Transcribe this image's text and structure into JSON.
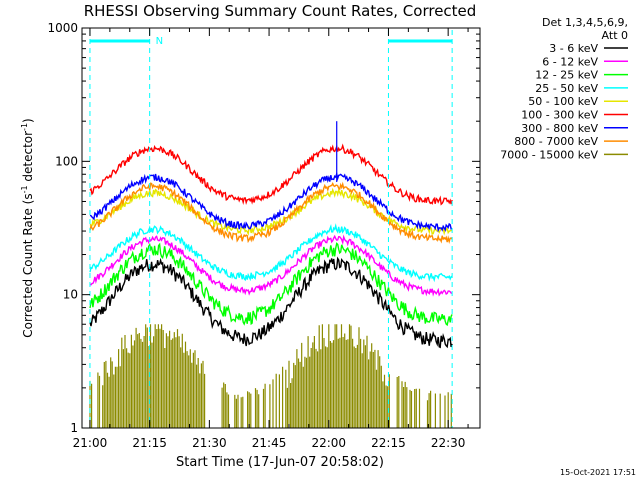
{
  "chart_data": {
    "type": "line",
    "title": "RHESSI Observing Summary Count Rates, Corrected",
    "xlabel": "Start Time (17-Jun-07 20:58:02)",
    "ylabel_main": "Corrected Count Rate (s",
    "ylabel_sup1": "-1",
    "ylabel_mid": " detector",
    "ylabel_sup2": "-1",
    "ylabel_end": ")",
    "yscale": "log",
    "ylim": [
      1,
      1000
    ],
    "xlim_minutes": [
      -2,
      98
    ],
    "x_ticks": [
      {
        "value": 0,
        "label": "21:00"
      },
      {
        "value": 15,
        "label": "21:15"
      },
      {
        "value": 30,
        "label": "21:30"
      },
      {
        "value": 45,
        "label": "21:45"
      },
      {
        "value": 60,
        "label": "22:00"
      },
      {
        "value": 75,
        "label": "22:15"
      },
      {
        "value": 90,
        "label": "22:30"
      }
    ],
    "y_ticks": [
      {
        "value": 1,
        "label": "1"
      },
      {
        "value": 10,
        "label": "10"
      },
      {
        "value": 100,
        "label": "100"
      },
      {
        "value": 1000,
        "label": "1000"
      }
    ],
    "legend": {
      "header1": "Det 1,3,4,5,6,9,",
      "header2": "Att 0",
      "position": "outside-right"
    },
    "series": [
      {
        "name": "3 - 6 keV",
        "color": "#000000",
        "base": 4.5,
        "peak": 17,
        "kind": "orbit"
      },
      {
        "name": "6 - 12 keV",
        "color": "#ff00ff",
        "base": 10.5,
        "peak": 26,
        "kind": "orbit"
      },
      {
        "name": "12 - 25 keV",
        "color": "#00ff00",
        "base": 6.5,
        "peak": 22,
        "kind": "orbit"
      },
      {
        "name": "25 - 50 keV",
        "color": "#00ffff",
        "base": 13.5,
        "peak": 31,
        "kind": "orbit"
      },
      {
        "name": "50 - 100 keV",
        "color": "#e6e600",
        "base": 30,
        "peak": 58,
        "kind": "orbit"
      },
      {
        "name": "100 - 300 keV",
        "color": "#ff0000",
        "base": 50,
        "peak": 125,
        "kind": "orbit"
      },
      {
        "name": "300 - 800 keV",
        "color": "#0000ff",
        "base": 32,
        "peak": 76,
        "kind": "orbit"
      },
      {
        "name": "800 - 7000 keV",
        "color": "#ff8c00",
        "base": 26,
        "peak": 65,
        "kind": "orbit"
      },
      {
        "name": "7000 - 15000 keV",
        "color": "#8b8b00",
        "base": 1.5,
        "peak": 5.5,
        "kind": "sparse"
      }
    ],
    "orbit_peaks_minutes": [
      16,
      62
    ],
    "orbit_half_width_minutes": 13,
    "night_markers_minutes": [
      15,
      75
    ],
    "orbit_edge_markers_minutes": [
      0,
      91
    ],
    "night_bar_segments": [
      [
        0,
        15
      ],
      [
        75,
        91
      ]
    ],
    "night_label": "N",
    "spike_minute": 62,
    "spike_top": 200,
    "axis_color": "#000000",
    "marker_color": "#00ffff"
  },
  "footer": {
    "timestamp": "15-Oct-2021 17:51"
  }
}
